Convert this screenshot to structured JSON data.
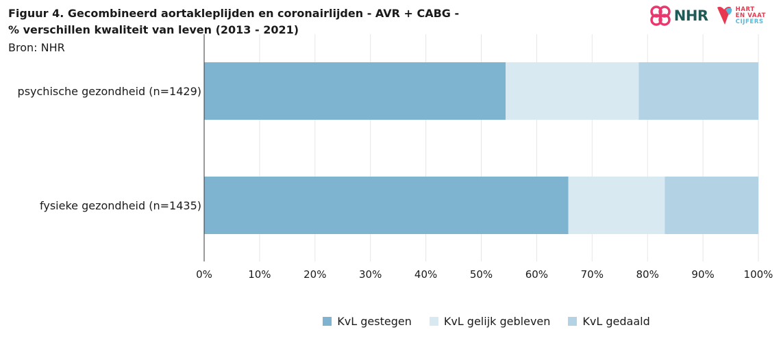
{
  "title_lines": [
    "Figuur 4. Gecombineerd aortakleplijden en coronairlijden - AVR + CABG -",
    "% verschillen kwaliteit van leven (2013 - 2021)"
  ],
  "source": "Bron: NHR",
  "logos": {
    "nhr": "NHR",
    "hartenvaat": [
      "HART",
      "EN VAAT",
      "CIJFERS"
    ]
  },
  "chart_data": {
    "type": "bar",
    "orientation": "horizontal",
    "stacked": true,
    "categories": [
      "psychische gezondheid (n=1429)",
      "fysieke gezondheid (n=1435)"
    ],
    "series": [
      {
        "name": "KvL gestegen",
        "color": "#7fb4d1",
        "values": [
          54.4,
          65.7
        ]
      },
      {
        "name": "KvL gelijk gebleven",
        "color": "#d9e9f2",
        "values": [
          24.0,
          17.4
        ]
      },
      {
        "name": "KvL gedaald",
        "color": "#b3d3e4",
        "values": [
          21.6,
          16.9
        ]
      }
    ],
    "xlim": [
      0,
      100
    ],
    "xticks": [
      "0%",
      "10%",
      "20%",
      "30%",
      "40%",
      "50%",
      "60%",
      "70%",
      "80%",
      "90%",
      "100%"
    ],
    "grid": true,
    "legend_position": "bottom"
  }
}
